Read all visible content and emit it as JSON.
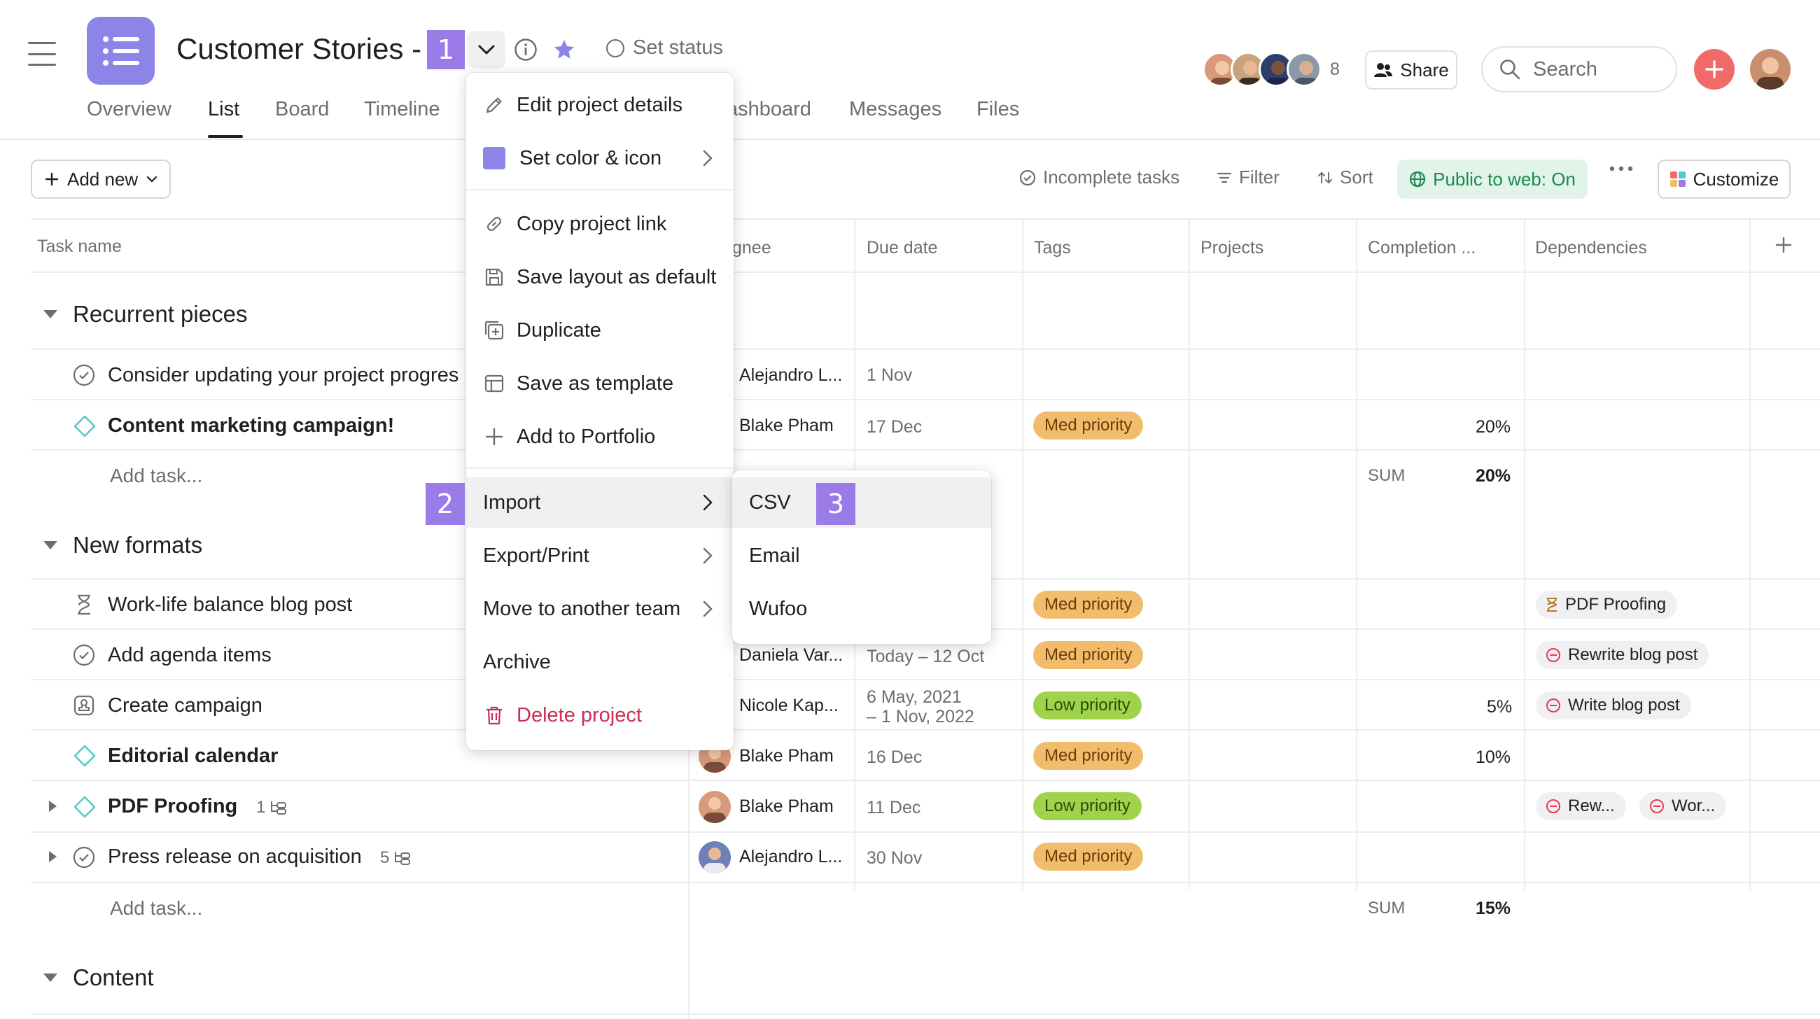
{
  "colors": {
    "accent": "#8d84e8",
    "badge": "#9b7be8",
    "danger": "#c92f54",
    "public_green": "#1b8a4f",
    "med_priority": "#f1bd6c",
    "low_priority": "#9ed34b"
  },
  "header": {
    "project_title": "Customer Stories - ",
    "set_status": "Set status",
    "tabs": [
      "Overview",
      "List",
      "Board",
      "Timeline",
      "ashboard",
      "Messages",
      "Files"
    ],
    "active_tab": "List",
    "member_count": "8",
    "share_label": "Share",
    "search_placeholder": "Search"
  },
  "badges": {
    "one": "1",
    "two": "2",
    "three": "3"
  },
  "toolbar": {
    "add_new": "Add new",
    "incomplete_tasks": "Incomplete tasks",
    "filter": "Filter",
    "sort": "Sort",
    "public_to_web": "Public to web: On",
    "customize": "Customize"
  },
  "table": {
    "columns": [
      "Task name",
      "gnee",
      "Due date",
      "Tags",
      "Projects",
      "Completion ...",
      "Dependencies"
    ],
    "add_task_label": "Add task...",
    "sum_label": "SUM",
    "sections": [
      {
        "title": "Recurrent pieces",
        "sum": "20%",
        "tasks": [
          {
            "name": "Consider updating your project progres",
            "assignee": "Alejandro L...",
            "due": "1 Nov"
          },
          {
            "name": "Content marketing campaign!",
            "assignee": "Blake Pham",
            "due": "17 Dec",
            "tag": "Med priority",
            "completion": "20%"
          }
        ]
      },
      {
        "title": "New formats",
        "sum": "15%",
        "tasks": [
          {
            "name": "Work-life balance blog post",
            "tag": "Med priority",
            "dependency": "PDF Proofing"
          },
          {
            "name": "Add agenda items",
            "assignee": "Daniela Var...",
            "due": "Today – 12 Oct",
            "tag": "Med priority",
            "dependency": "Rewrite blog post"
          },
          {
            "name": "Create campaign",
            "assignee": "Nicole Kap...",
            "due_line1": "6 May, 2021",
            "due_line2": "– 1 Nov, 2022",
            "tag": "Low priority",
            "completion": "5%",
            "dependency": "Write blog post"
          },
          {
            "name": "Editorial calendar",
            "assignee": "Blake Pham",
            "due": "16 Dec",
            "tag": "Med priority",
            "completion": "10%"
          },
          {
            "name": "PDF Proofing",
            "subtasks": "1",
            "assignee": "Blake Pham",
            "due": "11 Dec",
            "tag": "Low priority",
            "dependency": "Rew...",
            "dependency2": "Wor..."
          },
          {
            "name": "Press release on acquisition",
            "subtasks": "5",
            "assignee": "Alejandro L...",
            "due": "30 Nov",
            "tag": "Med priority"
          }
        ]
      },
      {
        "title": "Content"
      }
    ]
  },
  "menu": {
    "items": [
      {
        "label": "Edit project details",
        "icon": "pencil-icon"
      },
      {
        "label": "Set color & icon",
        "icon": "color-swatch-icon"
      },
      {
        "label": "Copy project link",
        "icon": "link-icon"
      },
      {
        "label": "Save layout as default",
        "icon": "save-icon"
      },
      {
        "label": "Duplicate",
        "icon": "duplicate-icon"
      },
      {
        "label": "Save as template",
        "icon": "template-icon"
      },
      {
        "label": "Add to Portfolio",
        "icon": "plus-icon"
      },
      {
        "label": "Import"
      },
      {
        "label": "Export/Print"
      },
      {
        "label": "Move to another team"
      },
      {
        "label": "Archive"
      },
      {
        "label": "Delete project",
        "icon": "trash-icon"
      }
    ],
    "import_submenu": [
      "CSV",
      "Email",
      "Wufoo"
    ]
  }
}
